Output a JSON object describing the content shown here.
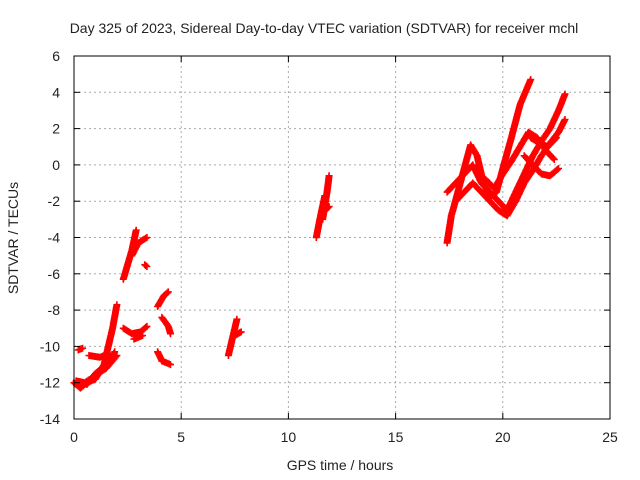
{
  "chart_data": {
    "type": "scatter",
    "title": "Day 325 of 2023, Sidereal Day-to-day VTEC variation (SDTVAR) for receiver mchl",
    "xlabel": "GPS time / hours",
    "ylabel": "SDTVAR / TECUs",
    "xlim": [
      0,
      25
    ],
    "ylim": [
      -14,
      6
    ],
    "xticks": [
      0,
      5,
      10,
      15,
      20,
      25
    ],
    "yticks": [
      -14,
      -12,
      -10,
      -8,
      -6,
      -4,
      -2,
      0,
      2,
      4,
      6
    ],
    "grid": true,
    "marker": "+",
    "series": [
      {
        "name": "SDTVAR",
        "color": "#ff0000",
        "segments": [
          {
            "x": [
              0.0,
              0.3,
              0.6,
              1.0,
              1.4,
              1.8,
              2.0
            ],
            "y": [
              -12.0,
              -12.3,
              -12.0,
              -11.8,
              -11.0,
              -9.0,
              -7.7
            ]
          },
          {
            "x": [
              0.1,
              0.5,
              1.0,
              1.5,
              2.0
            ],
            "y": [
              -11.9,
              -12.0,
              -11.6,
              -11.2,
              -10.5
            ]
          },
          {
            "x": [
              0.6,
              1.0,
              1.5,
              1.9
            ],
            "y": [
              -12.1,
              -11.5,
              -11.0,
              -10.3
            ]
          },
          {
            "x": [
              0.2,
              0.4
            ],
            "y": [
              -10.2,
              -10.1
            ]
          },
          {
            "x": [
              0.7,
              1.2,
              1.6
            ],
            "y": [
              -10.5,
              -10.6,
              -10.4
            ]
          },
          {
            "x": [
              2.3,
              2.5,
              2.7,
              2.9
            ],
            "y": [
              -6.3,
              -5.5,
              -4.7,
              -3.6
            ]
          },
          {
            "x": [
              2.7,
              3.0,
              3.4
            ],
            "y": [
              -5.0,
              -4.3,
              -4.0
            ]
          },
          {
            "x": [
              2.3,
              2.7,
              3.1,
              3.4
            ],
            "y": [
              -9.0,
              -9.3,
              -9.2,
              -8.9
            ]
          },
          {
            "x": [
              2.8,
              3.2
            ],
            "y": [
              -9.6,
              -9.4
            ]
          },
          {
            "x": [
              3.3,
              3.4
            ],
            "y": [
              -5.5,
              -5.6
            ]
          },
          {
            "x": [
              3.9,
              4.2,
              4.4
            ],
            "y": [
              -7.8,
              -7.2,
              -7.0
            ]
          },
          {
            "x": [
              4.1,
              4.4,
              4.5
            ],
            "y": [
              -8.4,
              -8.9,
              -9.3
            ]
          },
          {
            "x": [
              3.9,
              4.1
            ],
            "y": [
              -10.3,
              -10.8
            ]
          },
          {
            "x": [
              4.1,
              4.5
            ],
            "y": [
              -10.8,
              -11.0
            ]
          },
          {
            "x": [
              7.2,
              7.4,
              7.6
            ],
            "y": [
              -10.5,
              -9.5,
              -8.5
            ]
          },
          {
            "x": [
              7.5,
              7.8
            ],
            "y": [
              -9.4,
              -9.2
            ]
          },
          {
            "x": [
              11.3,
              11.5,
              11.7
            ],
            "y": [
              -4.0,
              -2.8,
              -1.7
            ]
          },
          {
            "x": [
              11.6,
              11.8,
              11.9
            ],
            "y": [
              -3.0,
              -1.5,
              -0.6
            ]
          },
          {
            "x": [
              11.6,
              11.9
            ],
            "y": [
              -2.6,
              -2.3
            ]
          },
          {
            "x": [
              17.4,
              17.6,
              17.9,
              18.2,
              18.5,
              18.8,
              19.1,
              19.4,
              19.7,
              20.0,
              20.4,
              20.8,
              21.3
            ],
            "y": [
              -4.3,
              -2.8,
              -1.5,
              -0.2,
              1.1,
              0.5,
              -1.0,
              -1.8,
              -1.5,
              -0.2,
              1.5,
              3.3,
              4.7
            ]
          },
          {
            "x": [
              17.4,
              17.8,
              18.2,
              18.6,
              19.0,
              19.4,
              19.8,
              20.2,
              20.6,
              21.0,
              21.4,
              21.8,
              22.2,
              22.6,
              22.9
            ],
            "y": [
              -1.5,
              -1.0,
              -0.5,
              0.0,
              -1.0,
              -1.5,
              -2.0,
              -2.5,
              -1.5,
              -0.5,
              0.5,
              1.3,
              2.0,
              3.0,
              3.9
            ]
          },
          {
            "x": [
              17.8,
              18.2,
              18.6,
              19.0,
              19.4,
              19.8,
              20.2,
              20.6,
              21.0,
              21.4,
              21.8,
              22.2,
              22.6,
              22.9
            ],
            "y": [
              -2.0,
              -1.5,
              -1.0,
              -1.5,
              -2.0,
              -2.5,
              -2.8,
              -2.0,
              -1.0,
              -0.3,
              0.5,
              1.2,
              1.8,
              2.5
            ]
          },
          {
            "x": [
              19.2,
              19.6,
              20.0,
              20.4,
              20.8,
              21.2,
              21.6,
              22.0,
              22.4
            ],
            "y": [
              -0.8,
              -1.3,
              -0.5,
              0.2,
              1.0,
              1.8,
              1.5,
              0.8,
              0.3
            ]
          },
          {
            "x": [
              21.0,
              21.4,
              21.8,
              22.2,
              22.6
            ],
            "y": [
              0.5,
              0.0,
              -0.5,
              -0.6,
              -0.2
            ]
          },
          {
            "x": [
              21.3,
              21.7,
              22.1,
              22.5
            ],
            "y": [
              1.5,
              1.2,
              1.0,
              1.5
            ]
          }
        ]
      }
    ]
  }
}
